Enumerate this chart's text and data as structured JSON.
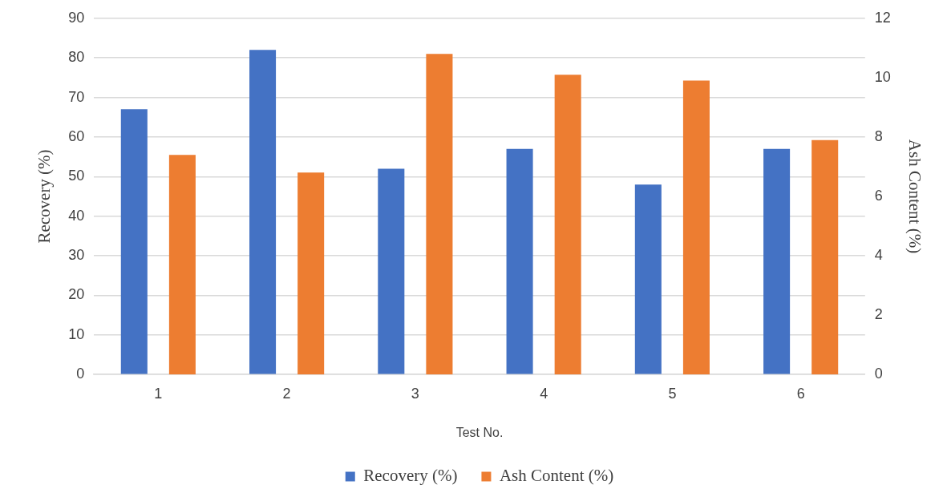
{
  "chart_data": {
    "type": "bar",
    "xlabel": "Test No.",
    "ylabel": "Recovery (%)",
    "y2label": "Ash Content (%)",
    "categories": [
      "1",
      "2",
      "3",
      "4",
      "5",
      "6"
    ],
    "series": [
      {
        "name": "Recovery (%)",
        "color": "#4472c4",
        "values": [
          67,
          82,
          52,
          57,
          48,
          57
        ]
      },
      {
        "name": "Ash Content (%)",
        "color": "#ed7d31",
        "axis": "y2",
        "values": [
          7.4,
          6.8,
          10.8,
          10.1,
          9.9,
          7.9
        ]
      }
    ],
    "ylim": [
      0,
      90
    ],
    "yticks": [
      0,
      10,
      20,
      30,
      40,
      50,
      60,
      70,
      80,
      90
    ],
    "y2lim": [
      0,
      12
    ],
    "y2ticks": [
      0,
      2,
      4,
      6,
      8,
      10,
      12
    ],
    "grid": "y",
    "legend": "bottom"
  }
}
